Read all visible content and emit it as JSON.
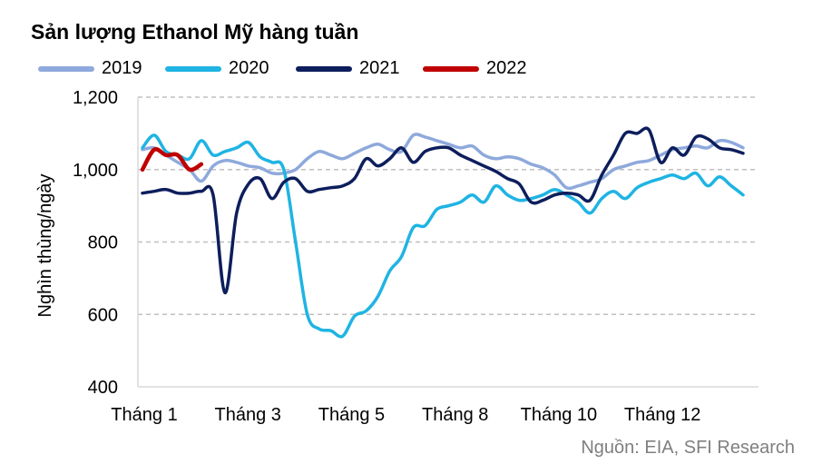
{
  "chart_data": {
    "type": "line",
    "title": "Sản lượng Ethanol Mỹ hàng tuần",
    "ylabel": "Nghìn thùng/ngày",
    "xlabel": "",
    "ylim": [
      400,
      1200
    ],
    "yticks": [
      400,
      600,
      800,
      1000,
      1200
    ],
    "ytick_labels": [
      "400",
      "600",
      "800",
      "1,000",
      "1,200"
    ],
    "xlim": [
      0,
      52
    ],
    "xticks": [
      {
        "label": "Tháng 1",
        "x": 0
      },
      {
        "label": "Tháng 3",
        "x": 8.8
      },
      {
        "label": "Tháng 5",
        "x": 17.6
      },
      {
        "label": "Tháng 8",
        "x": 26.4
      },
      {
        "label": "Tháng 10",
        "x": 35.2
      },
      {
        "label": "Tháng 12",
        "x": 44
      }
    ],
    "grid": "horizontal-dashed",
    "legend_position": "top",
    "series": [
      {
        "name": "2019",
        "color": "#8EA9DB",
        "values": [
          1055,
          1060,
          1040,
          1020,
          1000,
          968,
          1010,
          1025,
          1020,
          1010,
          1005,
          990,
          990,
          1000,
          1030,
          1050,
          1040,
          1030,
          1045,
          1060,
          1070,
          1055,
          1050,
          1095,
          1090,
          1080,
          1070,
          1060,
          1065,
          1040,
          1030,
          1035,
          1030,
          1015,
          1005,
          985,
          950,
          955,
          965,
          975,
          1000,
          1010,
          1020,
          1025,
          1040,
          1055,
          1060,
          1065,
          1060,
          1080,
          1075,
          1060
        ]
      },
      {
        "name": "2020",
        "color": "#1FB4E3",
        "values": [
          1060,
          1095,
          1050,
          1040,
          1030,
          1080,
          1040,
          1050,
          1060,
          1075,
          1035,
          1020,
          1000,
          800,
          600,
          560,
          555,
          540,
          595,
          610,
          650,
          720,
          760,
          840,
          845,
          890,
          900,
          910,
          930,
          910,
          955,
          930,
          915,
          920,
          930,
          945,
          930,
          910,
          880,
          920,
          940,
          920,
          950,
          965,
          975,
          985,
          975,
          990,
          955,
          980,
          955,
          930
        ]
      },
      {
        "name": "2021",
        "color": "#0D1E5C",
        "values": [
          935,
          940,
          945,
          935,
          935,
          940,
          930,
          660,
          880,
          960,
          975,
          920,
          965,
          975,
          940,
          945,
          950,
          955,
          975,
          1030,
          1010,
          1030,
          1060,
          1020,
          1050,
          1060,
          1060,
          1040,
          1025,
          1010,
          995,
          975,
          960,
          910,
          915,
          930,
          935,
          930,
          915,
          985,
          1040,
          1100,
          1100,
          1110,
          1020,
          1060,
          1040,
          1090,
          1085,
          1060,
          1055,
          1045
        ]
      },
      {
        "name": "2022",
        "color": "#C00000",
        "values": [
          1000,
          1055,
          1040,
          1040,
          1000,
          1015
        ]
      }
    ],
    "source": "Nguồn: EIA, SFI Research"
  }
}
